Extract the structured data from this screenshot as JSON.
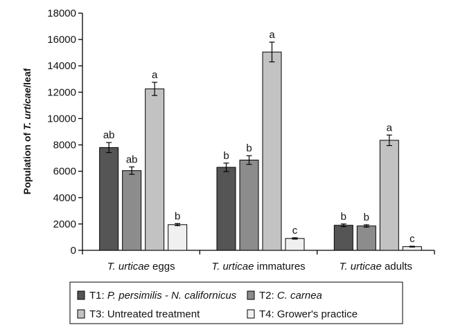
{
  "chart_data": {
    "type": "bar",
    "title": "",
    "xlabel": "",
    "ylabel": {
      "prefix": "Population of ",
      "italic": "T. urticae",
      "suffix": "/leaf"
    },
    "ylim": [
      0,
      18000
    ],
    "yticks": [
      "0",
      "2000",
      "4000",
      "6000",
      "8000",
      "10000",
      "12000",
      "14000",
      "16000",
      "18000"
    ],
    "grid": false,
    "legend_position": "bottom",
    "categories": [
      {
        "italic": "T. urticae",
        "rest": " eggs"
      },
      {
        "italic": "T. urticae",
        "rest": " immatures"
      },
      {
        "italic": "T. urticae",
        "rest": " adults"
      }
    ],
    "series": [
      {
        "legend": {
          "plain": "T1: ",
          "italic": "P. persimilis - N. californicus",
          "after": ""
        },
        "color": "#555555",
        "values": [
          7800,
          6300,
          1900
        ],
        "errors": [
          380,
          320,
          100
        ],
        "letters": [
          "ab",
          "b",
          "b"
        ]
      },
      {
        "legend": {
          "plain": "T2: ",
          "italic": "C. carnea",
          "after": ""
        },
        "color": "#8c8c8c",
        "values": [
          6050,
          6850,
          1850
        ],
        "errors": [
          280,
          330,
          90
        ],
        "letters": [
          "ab",
          "b",
          "b"
        ]
      },
      {
        "legend": {
          "plain": "T3: Untreated treatment",
          "italic": "",
          "after": ""
        },
        "color": "#c2c2c2",
        "values": [
          12250,
          15050,
          8350
        ],
        "errors": [
          500,
          750,
          400
        ],
        "letters": [
          "a",
          "a",
          "a"
        ]
      },
      {
        "legend": {
          "plain": "T4: Grower's practice",
          "italic": "",
          "after": ""
        },
        "color": "#f0f0f0",
        "values": [
          1950,
          900,
          280
        ],
        "errors": [
          80,
          50,
          30
        ],
        "letters": [
          "b",
          "c",
          "c"
        ]
      }
    ]
  }
}
